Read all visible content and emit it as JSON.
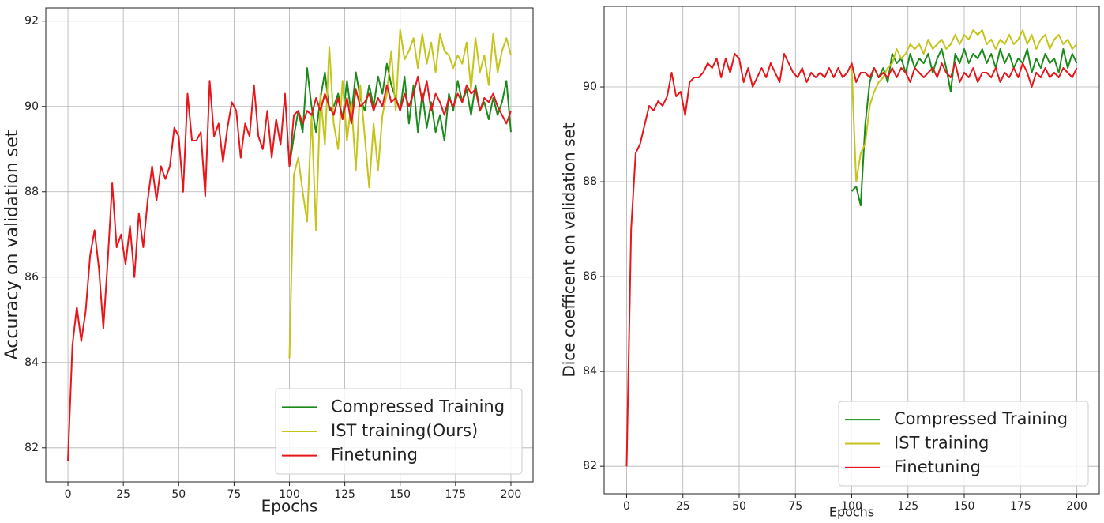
{
  "chart_data": [
    {
      "type": "line",
      "xlabel": "Epochs",
      "ylabel": "Accuracy on validation set",
      "xlim": [
        -10,
        210
      ],
      "ylim": [
        81.2,
        92.31
      ],
      "xticks": [
        0,
        25,
        50,
        75,
        100,
        125,
        150,
        175,
        200
      ],
      "yticks": [
        82,
        84,
        86,
        88,
        90,
        92
      ],
      "grid": true,
      "legend": "lower right",
      "series": [
        {
          "name": "Compressed Training",
          "color": "#1a8a1a",
          "x": [
            100,
            102,
            104,
            106,
            108,
            110,
            112,
            114,
            116,
            118,
            120,
            122,
            124,
            126,
            128,
            130,
            132,
            134,
            136,
            138,
            140,
            142,
            144,
            146,
            148,
            150,
            152,
            154,
            156,
            158,
            160,
            162,
            164,
            166,
            168,
            170,
            172,
            174,
            176,
            178,
            180,
            182,
            184,
            186,
            188,
            190,
            192,
            194,
            196,
            198,
            200
          ],
          "values": [
            88.6,
            89.3,
            89.9,
            89.4,
            90.9,
            90.0,
            89.4,
            90.2,
            90.8,
            89.9,
            90.0,
            90.3,
            89.7,
            90.6,
            89.8,
            90.8,
            90.2,
            89.9,
            90.5,
            90.0,
            90.7,
            90.3,
            91.0,
            90.5,
            90.2,
            89.9,
            90.7,
            89.6,
            90.5,
            89.4,
            90.3,
            89.5,
            90.1,
            89.4,
            89.8,
            89.2,
            90.3,
            89.9,
            90.6,
            90.1,
            90.4,
            89.8,
            90.5,
            89.9,
            90.1,
            89.7,
            90.2,
            89.8,
            90.1,
            90.6,
            89.4
          ]
        },
        {
          "name": "IST training(Ours)",
          "color": "#c4c41a",
          "x": [
            100,
            102,
            104,
            106,
            108,
            110,
            112,
            114,
            116,
            118,
            120,
            122,
            124,
            126,
            128,
            130,
            132,
            134,
            136,
            138,
            140,
            142,
            144,
            146,
            148,
            150,
            152,
            154,
            156,
            158,
            160,
            162,
            164,
            166,
            168,
            170,
            172,
            174,
            176,
            178,
            180,
            182,
            184,
            186,
            188,
            190,
            192,
            194,
            196,
            198,
            200
          ],
          "values": [
            84.1,
            88.4,
            88.8,
            88.0,
            87.3,
            89.8,
            87.1,
            90.3,
            89.1,
            91.4,
            89.6,
            89.0,
            90.6,
            89.2,
            90.1,
            88.5,
            90.5,
            89.3,
            88.1,
            89.6,
            88.5,
            89.8,
            90.3,
            91.3,
            89.9,
            91.8,
            91.1,
            91.3,
            91.6,
            90.9,
            91.7,
            91.0,
            91.5,
            90.8,
            91.7,
            91.3,
            91.2,
            90.9,
            91.2,
            91.0,
            91.5,
            90.4,
            91.6,
            90.8,
            91.2,
            90.5,
            91.7,
            90.8,
            91.3,
            91.6,
            91.2
          ]
        },
        {
          "name": "Finetuning",
          "color": "#e8161a",
          "x": [
            0,
            2,
            4,
            6,
            8,
            10,
            12,
            14,
            16,
            18,
            20,
            22,
            24,
            26,
            28,
            30,
            32,
            34,
            36,
            38,
            40,
            42,
            44,
            46,
            48,
            50,
            52,
            54,
            56,
            58,
            60,
            62,
            64,
            66,
            68,
            70,
            72,
            74,
            76,
            78,
            80,
            82,
            84,
            86,
            88,
            90,
            92,
            94,
            96,
            98,
            100,
            102,
            104,
            106,
            108,
            110,
            112,
            114,
            116,
            118,
            120,
            122,
            124,
            126,
            128,
            130,
            132,
            134,
            136,
            138,
            140,
            142,
            144,
            146,
            148,
            150,
            152,
            154,
            156,
            158,
            160,
            162,
            164,
            166,
            168,
            170,
            172,
            174,
            176,
            178,
            180,
            182,
            184,
            186,
            188,
            190,
            192,
            194,
            196,
            198,
            200
          ],
          "values": [
            81.7,
            84.4,
            85.3,
            84.5,
            85.2,
            86.5,
            87.1,
            86.2,
            84.8,
            86.4,
            88.2,
            86.7,
            87.0,
            86.3,
            87.2,
            86.0,
            87.5,
            86.7,
            87.8,
            88.6,
            87.8,
            88.6,
            88.3,
            88.6,
            89.5,
            89.3,
            88.0,
            90.3,
            89.2,
            89.2,
            89.4,
            87.9,
            90.6,
            89.3,
            89.6,
            88.7,
            89.5,
            90.1,
            89.9,
            88.8,
            89.6,
            89.3,
            90.5,
            89.3,
            89.0,
            89.9,
            88.8,
            89.7,
            89.1,
            90.3,
            88.6,
            89.8,
            89.9,
            89.6,
            89.9,
            89.8,
            90.2,
            89.9,
            90.3,
            90.0,
            89.8,
            90.2,
            89.7,
            90.2,
            89.6,
            90.4,
            90.0,
            90.1,
            90.3,
            89.9,
            90.2,
            90.0,
            90.5,
            90.1,
            90.2,
            89.9,
            90.3,
            90.0,
            90.3,
            90.7,
            90.1,
            90.6,
            89.9,
            90.3,
            90.1,
            89.8,
            90.2,
            90.0,
            90.3,
            90.1,
            90.5,
            90.3,
            90.4,
            89.9,
            90.2,
            90.1,
            90.3,
            90.0,
            89.8,
            89.6,
            89.9
          ]
        }
      ]
    },
    {
      "type": "line",
      "xlabel": "Epochs",
      "ylabel": "Dice coefficent on validation set",
      "xlim": [
        -10,
        210
      ],
      "ylim": [
        81.42,
        91.7
      ],
      "xticks": [
        0,
        25,
        50,
        75,
        100,
        125,
        150,
        175,
        200
      ],
      "yticks": [
        82,
        84,
        86,
        88,
        90
      ],
      "grid": true,
      "legend": "lower right",
      "series": [
        {
          "name": "Compressed Training",
          "color": "#1a8a1a",
          "x": [
            100,
            102,
            104,
            106,
            108,
            110,
            112,
            114,
            116,
            118,
            120,
            122,
            124,
            126,
            128,
            130,
            132,
            134,
            136,
            138,
            140,
            142,
            144,
            146,
            148,
            150,
            152,
            154,
            156,
            158,
            160,
            162,
            164,
            166,
            168,
            170,
            172,
            174,
            176,
            178,
            180,
            182,
            184,
            186,
            188,
            190,
            192,
            194,
            196,
            198,
            200
          ],
          "values": [
            87.8,
            87.9,
            87.5,
            89.2,
            90.1,
            90.4,
            90.2,
            90.4,
            90.1,
            90.7,
            90.5,
            90.6,
            90.3,
            90.7,
            90.4,
            90.6,
            90.5,
            90.7,
            90.3,
            90.6,
            90.8,
            90.4,
            89.9,
            90.7,
            90.5,
            90.8,
            90.5,
            90.7,
            90.6,
            90.8,
            90.5,
            90.7,
            90.4,
            90.8,
            90.5,
            90.7,
            90.4,
            90.6,
            90.5,
            90.8,
            90.3,
            90.6,
            90.4,
            90.7,
            90.5,
            90.6,
            90.3,
            90.8,
            90.4,
            90.7,
            90.5
          ]
        },
        {
          "name": "IST training",
          "color": "#c4c41a",
          "x": [
            100,
            102,
            104,
            106,
            108,
            110,
            112,
            114,
            116,
            118,
            120,
            122,
            124,
            126,
            128,
            130,
            132,
            134,
            136,
            138,
            140,
            142,
            144,
            146,
            148,
            150,
            152,
            154,
            156,
            158,
            160,
            162,
            164,
            166,
            168,
            170,
            172,
            174,
            176,
            178,
            180,
            182,
            184,
            186,
            188,
            190,
            192,
            194,
            196,
            198,
            200
          ],
          "values": [
            90.4,
            88.0,
            88.6,
            88.8,
            89.6,
            89.9,
            90.1,
            90.2,
            90.4,
            90.5,
            90.8,
            90.6,
            90.7,
            90.9,
            90.8,
            90.9,
            90.7,
            91.0,
            90.8,
            90.9,
            91.0,
            90.8,
            90.9,
            91.1,
            90.9,
            91.1,
            91.0,
            91.2,
            91.1,
            91.2,
            90.9,
            91.0,
            90.8,
            91.0,
            90.9,
            91.1,
            90.9,
            91.0,
            91.2,
            90.9,
            91.1,
            90.8,
            91.0,
            91.1,
            90.8,
            91.0,
            91.1,
            90.9,
            91.0,
            90.8,
            90.9
          ]
        },
        {
          "name": "Finetuning",
          "color": "#e8161a",
          "x": [
            0,
            2,
            4,
            6,
            8,
            10,
            12,
            14,
            16,
            18,
            20,
            22,
            24,
            26,
            28,
            30,
            32,
            34,
            36,
            38,
            40,
            42,
            44,
            46,
            48,
            50,
            52,
            54,
            56,
            58,
            60,
            62,
            64,
            66,
            68,
            70,
            72,
            74,
            76,
            78,
            80,
            82,
            84,
            86,
            88,
            90,
            92,
            94,
            96,
            98,
            100,
            102,
            104,
            106,
            108,
            110,
            112,
            114,
            116,
            118,
            120,
            122,
            124,
            126,
            128,
            130,
            132,
            134,
            136,
            138,
            140,
            142,
            144,
            146,
            148,
            150,
            152,
            154,
            156,
            158,
            160,
            162,
            164,
            166,
            168,
            170,
            172,
            174,
            176,
            178,
            180,
            182,
            184,
            186,
            188,
            190,
            192,
            194,
            196,
            198,
            200
          ],
          "values": [
            82.0,
            87.0,
            88.6,
            88.8,
            89.2,
            89.6,
            89.5,
            89.7,
            89.6,
            89.8,
            90.3,
            89.8,
            89.9,
            89.4,
            90.1,
            90.2,
            90.2,
            90.3,
            90.5,
            90.4,
            90.6,
            90.2,
            90.6,
            90.3,
            90.7,
            90.6,
            90.1,
            90.4,
            90.0,
            90.2,
            90.4,
            90.2,
            90.5,
            90.3,
            90.1,
            90.7,
            90.5,
            90.3,
            90.2,
            90.4,
            90.1,
            90.3,
            90.2,
            90.3,
            90.2,
            90.4,
            90.2,
            90.4,
            90.2,
            90.3,
            90.5,
            90.1,
            90.3,
            90.3,
            90.2,
            90.4,
            90.2,
            90.3,
            90.2,
            90.4,
            90.2,
            90.4,
            90.3,
            90.1,
            90.4,
            90.3,
            90.2,
            90.3,
            90.4,
            90.2,
            90.5,
            90.3,
            90.2,
            90.5,
            90.1,
            90.3,
            90.2,
            90.4,
            90.1,
            90.3,
            90.3,
            90.2,
            90.4,
            90.1,
            90.3,
            90.2,
            90.4,
            90.2,
            90.5,
            90.3,
            90.0,
            90.3,
            90.2,
            90.4,
            90.2,
            90.3,
            90.2,
            90.4,
            90.3,
            90.2,
            90.4
          ]
        }
      ]
    }
  ]
}
